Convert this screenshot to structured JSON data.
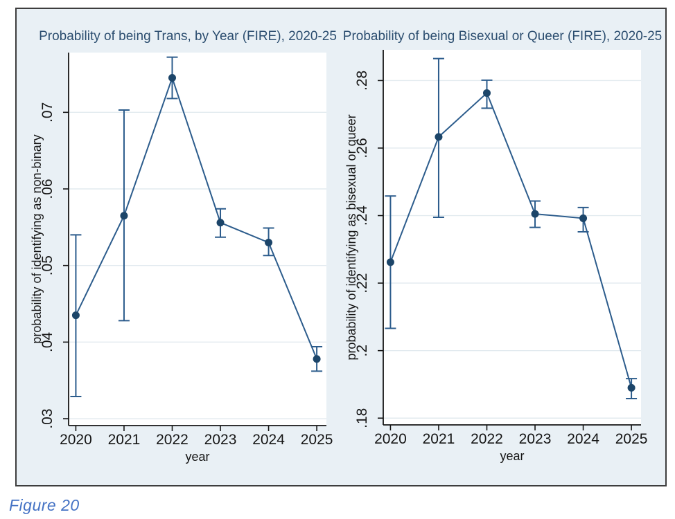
{
  "figure": {
    "caption": "Figure 20"
  },
  "colors": {
    "line": "#2c5c8c",
    "marker": "#1c4569",
    "error_bar": "#2c5c8c",
    "grid": "#e2eaef",
    "figure_bg": "#e9f0f5",
    "plot_bg": "#ffffff",
    "axis": "#151515",
    "tick_text": "#151515",
    "axis_label_text": "#151515",
    "title_text": "#2b4d6f",
    "caption_text": "#4472c4",
    "border": "#3d3d3d"
  },
  "chart_data": [
    {
      "type": "line",
      "title": "Probability of being Trans, by Year (FIRE), 2020-25",
      "xlabel": "year",
      "ylabel": "probability of identifying as non-binary",
      "x": [
        2020,
        2021,
        2022,
        2023,
        2024,
        2025
      ],
      "y": [
        0.0435,
        0.0565,
        0.0745,
        0.0556,
        0.053,
        0.0378
      ],
      "ci_low": [
        0.0329,
        0.0428,
        0.0718,
        0.0537,
        0.0513,
        0.0362
      ],
      "ci_high": [
        0.054,
        0.0703,
        0.0772,
        0.0574,
        0.0549,
        0.0394
      ],
      "xtick_labels": [
        "2020",
        "2021",
        "2022",
        "2023",
        "2024",
        "2025"
      ],
      "yticks": [
        0.03,
        0.04,
        0.05,
        0.06,
        0.07
      ],
      "ytick_labels": [
        ".03",
        ".04",
        ".05",
        ".06",
        ".07"
      ],
      "xlim": [
        2019.85,
        2025.2
      ],
      "ylim": [
        0.0291,
        0.0778
      ],
      "grid": true,
      "legend": "none",
      "marker": "circle"
    },
    {
      "type": "line",
      "title": "Probability of being Bisexual or Queer (FIRE), 2020-25",
      "xlabel": "year",
      "ylabel": "probability of identifying as bisexual or queer",
      "x": [
        2020,
        2021,
        2022,
        2023,
        2024,
        2025
      ],
      "y": [
        0.2262,
        0.2633,
        0.2763,
        0.2405,
        0.2392,
        0.189
      ],
      "ci_low": [
        0.2066,
        0.2395,
        0.2718,
        0.2365,
        0.2352,
        0.1858
      ],
      "ci_high": [
        0.2458,
        0.2865,
        0.2801,
        0.2443,
        0.2424,
        0.1917
      ],
      "xtick_labels": [
        "2020",
        "2021",
        "2022",
        "2023",
        "2024",
        "2025"
      ],
      "yticks": [
        0.18,
        0.2,
        0.22,
        0.24,
        0.26,
        0.28
      ],
      "ytick_labels": [
        ".18",
        ".2",
        ".22",
        ".24",
        ".26",
        ".28"
      ],
      "xlim": [
        2019.85,
        2025.2
      ],
      "ylim": [
        0.178,
        0.2891
      ],
      "grid": true,
      "legend": "none",
      "marker": "circle"
    }
  ]
}
